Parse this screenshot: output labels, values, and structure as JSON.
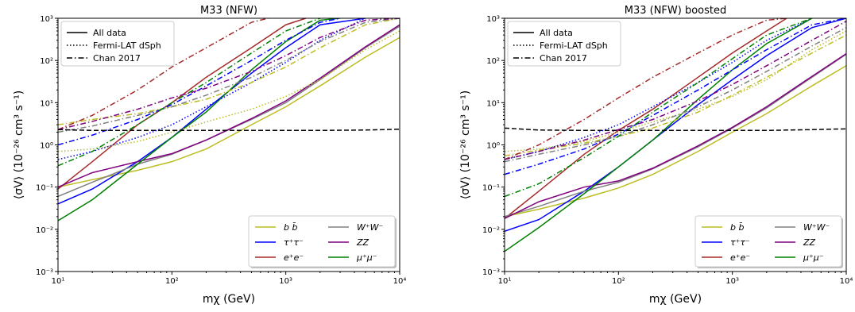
{
  "chart_data": [
    {
      "type": "line",
      "title": "M33 (NFW)",
      "xlabel": "mχ (GeV)",
      "ylabel": "⟨σV⟩ (10⁻²⁶ cm³ s⁻¹)",
      "xscale": "log",
      "yscale": "log",
      "xlim": [
        10,
        10000
      ],
      "ylim": [
        0.001,
        1000
      ],
      "xticks": [
        "10¹",
        "10²",
        "10³",
        "10⁴"
      ],
      "yticks": [
        "10⁻³",
        "10⁻²",
        "10⁻¹",
        "10⁰",
        "10¹",
        "10²",
        "10³"
      ],
      "style_legend": {
        "placement": "upper-left",
        "entries": [
          {
            "name": "All data",
            "dash": "solid"
          },
          {
            "name": "Fermi-LAT dSph",
            "dash": "dotted"
          },
          {
            "name": "Chan 2017",
            "dash": "dashdot"
          }
        ]
      },
      "channel_legend": {
        "placement": "lower-right",
        "entries": [
          {
            "name": "b b̄",
            "color": "#bcbd22"
          },
          {
            "name": "τ⁺τ⁻",
            "color": "#0000ff"
          },
          {
            "name": "e⁺e⁻",
            "color": "#a52a2a"
          },
          {
            "name": "W⁺W⁻",
            "color": "#808080"
          },
          {
            "name": "ZZ",
            "color": "#800080"
          },
          {
            "name": "μ⁺μ⁻",
            "color": "#008000"
          }
        ]
      },
      "series": [
        {
          "channel": "b b̄",
          "dash": "solid",
          "color": "#bcbd22",
          "x": [
            10,
            20,
            50,
            100,
            200,
            500,
            1000,
            2000,
            5000,
            10000
          ],
          "y": [
            0.1,
            0.15,
            0.25,
            0.4,
            0.8,
            3,
            8,
            25,
            120,
            350
          ]
        },
        {
          "channel": "τ⁺τ⁻",
          "dash": "solid",
          "color": "#0000ff",
          "x": [
            10,
            20,
            50,
            100,
            200,
            500,
            1000,
            2000,
            5000
          ],
          "y": [
            0.04,
            0.09,
            0.4,
            1.5,
            7,
            50,
            200,
            700,
            1000
          ]
        },
        {
          "channel": "e⁺e⁻",
          "dash": "solid",
          "color": "#a52a2a",
          "x": [
            10,
            20,
            50,
            100,
            200,
            500,
            1000,
            1500
          ],
          "y": [
            0.09,
            0.4,
            3,
            10,
            40,
            200,
            700,
            1000
          ]
        },
        {
          "channel": "W⁺W⁻",
          "dash": "solid",
          "color": "#808080",
          "x": [
            10,
            20,
            50,
            100,
            200,
            500,
            1000,
            2000,
            5000,
            10000
          ],
          "y": [
            0.06,
            0.13,
            0.35,
            0.6,
            1.3,
            4,
            10,
            35,
            200,
            650
          ]
        },
        {
          "channel": "ZZ",
          "dash": "solid",
          "color": "#800080",
          "x": [
            10,
            20,
            50,
            100,
            200,
            500,
            1000,
            2000,
            5000,
            10000
          ],
          "y": [
            0.1,
            0.22,
            0.4,
            0.62,
            1.3,
            4.2,
            11,
            38,
            210,
            700
          ]
        },
        {
          "channel": "μ⁺μ⁻",
          "dash": "solid",
          "color": "#008000",
          "x": [
            10,
            20,
            50,
            100,
            200,
            500,
            1000,
            2000,
            3000
          ],
          "y": [
            0.016,
            0.05,
            0.35,
            1.5,
            6,
            60,
            280,
            900,
            1000
          ]
        },
        {
          "channel": "b b̄",
          "dash": "dotted",
          "color": "#bcbd22",
          "x": [
            10,
            20,
            50,
            100,
            200,
            500,
            1000,
            2000,
            5000,
            10000
          ],
          "y": [
            0.7,
            0.8,
            1.2,
            2,
            3.5,
            7,
            14,
            35,
            180,
            500
          ]
        },
        {
          "channel": "τ⁺τ⁻",
          "dash": "dotted",
          "color": "#0000ff",
          "x": [
            10,
            20,
            50,
            100,
            200,
            500,
            1000,
            2000,
            5000
          ],
          "y": [
            0.45,
            0.7,
            1.5,
            3,
            8,
            30,
            90,
            300,
            1000
          ]
        },
        {
          "channel": "b b̄",
          "dash": "dashdot",
          "color": "#bcbd22",
          "x": [
            10,
            20,
            50,
            100,
            200,
            500,
            1000,
            2000,
            5000,
            10000
          ],
          "y": [
            3,
            4,
            5.5,
            8,
            12,
            30,
            70,
            200,
            700,
            1000
          ]
        },
        {
          "channel": "τ⁺τ⁻",
          "dash": "dashdot",
          "color": "#0000ff",
          "x": [
            10,
            20,
            50,
            100,
            200,
            500,
            1000,
            2000,
            3000
          ],
          "y": [
            1,
            1.7,
            4,
            9,
            25,
            100,
            300,
            800,
            1000
          ]
        },
        {
          "channel": "e⁺e⁻",
          "dash": "dashdot",
          "color": "#a52a2a",
          "x": [
            10,
            20,
            50,
            100,
            200,
            500,
            700
          ],
          "y": [
            2.3,
            5,
            20,
            70,
            200,
            800,
            1000
          ]
        },
        {
          "channel": "W⁺W⁻",
          "dash": "dashdot",
          "color": "#808080",
          "x": [
            10,
            20,
            50,
            100,
            200,
            500,
            1000,
            2000,
            5000,
            10000
          ],
          "y": [
            2,
            2.8,
            5,
            8,
            15,
            40,
            100,
            280,
            800,
            1000
          ]
        },
        {
          "channel": "ZZ",
          "dash": "dashdot",
          "color": "#800080",
          "x": [
            10,
            20,
            50,
            100,
            200,
            500,
            1000,
            2000,
            5000,
            10000
          ],
          "y": [
            2.3,
            3.6,
            7,
            13,
            22,
            55,
            130,
            350,
            900,
            1000
          ]
        },
        {
          "channel": "μ⁺μ⁻",
          "dash": "dashdot",
          "color": "#008000",
          "x": [
            10,
            20,
            50,
            100,
            200,
            500,
            1000,
            2000
          ],
          "y": [
            0.32,
            0.7,
            3,
            10,
            30,
            150,
            500,
            1000
          ]
        },
        {
          "channel": "reference",
          "dash": "dashed",
          "color": "#000000",
          "x": [
            10,
            20,
            50,
            100,
            200,
            500,
            1000,
            2000,
            5000,
            10000
          ],
          "y": [
            2.3,
            2.2,
            2.2,
            2.2,
            2.2,
            2.2,
            2.2,
            2.2,
            2.25,
            2.35
          ]
        }
      ]
    },
    {
      "type": "line",
      "title": "M33 (NFW) boosted",
      "xlabel": "mχ (GeV)",
      "ylabel": "⟨σV⟩ (10⁻²⁶ cm³ s⁻¹)",
      "xscale": "log",
      "yscale": "log",
      "xlim": [
        10,
        10000
      ],
      "ylim": [
        0.001,
        1000
      ],
      "xticks": [
        "10¹",
        "10²",
        "10³",
        "10⁴"
      ],
      "yticks": [
        "10⁻³",
        "10⁻²",
        "10⁻¹",
        "10⁰",
        "10¹",
        "10²",
        "10³"
      ],
      "style_legend": {
        "placement": "upper-left",
        "entries": [
          {
            "name": "All data",
            "dash": "solid"
          },
          {
            "name": "Fermi-LAT dSph",
            "dash": "dotted"
          },
          {
            "name": "Chan 2017",
            "dash": "dashdot"
          }
        ]
      },
      "channel_legend": {
        "placement": "lower-right",
        "entries": [
          {
            "name": "b b̄",
            "color": "#bcbd22"
          },
          {
            "name": "τ⁺τ⁻",
            "color": "#0000ff"
          },
          {
            "name": "e⁺e⁻",
            "color": "#a52a2a"
          },
          {
            "name": "W⁺W⁻",
            "color": "#808080"
          },
          {
            "name": "ZZ",
            "color": "#800080"
          },
          {
            "name": "μ⁺μ⁻",
            "color": "#008000"
          }
        ]
      },
      "series": [
        {
          "channel": "b b̄",
          "dash": "solid",
          "color": "#bcbd22",
          "x": [
            10,
            20,
            50,
            100,
            200,
            500,
            1000,
            2000,
            5000,
            10000
          ],
          "y": [
            0.02,
            0.03,
            0.055,
            0.095,
            0.2,
            0.7,
            2,
            5.5,
            25,
            75
          ]
        },
        {
          "channel": "τ⁺τ⁻",
          "dash": "solid",
          "color": "#0000ff",
          "x": [
            10,
            20,
            50,
            100,
            200,
            500,
            1000,
            2000,
            5000,
            10000
          ],
          "y": [
            0.009,
            0.017,
            0.08,
            0.3,
            1.3,
            9,
            35,
            130,
            600,
            1000
          ]
        },
        {
          "channel": "e⁺e⁻",
          "dash": "solid",
          "color": "#a52a2a",
          "x": [
            10,
            20,
            50,
            100,
            200,
            500,
            1000,
            2000,
            3000
          ],
          "y": [
            0.018,
            0.08,
            0.6,
            2.2,
            7,
            40,
            150,
            500,
            1000
          ]
        },
        {
          "channel": "W⁺W⁻",
          "dash": "solid",
          "color": "#808080",
          "x": [
            10,
            20,
            50,
            100,
            200,
            500,
            1000,
            2000,
            5000,
            10000
          ],
          "y": [
            0.02,
            0.035,
            0.08,
            0.13,
            0.27,
            0.9,
            2.5,
            7.5,
            40,
            140
          ]
        },
        {
          "channel": "ZZ",
          "dash": "solid",
          "color": "#800080",
          "x": [
            10,
            20,
            50,
            100,
            200,
            500,
            1000,
            2000,
            5000,
            10000
          ],
          "y": [
            0.018,
            0.045,
            0.1,
            0.14,
            0.28,
            0.95,
            2.6,
            8,
            42,
            145
          ]
        },
        {
          "channel": "μ⁺μ⁻",
          "dash": "solid",
          "color": "#008000",
          "x": [
            10,
            20,
            50,
            100,
            200,
            500,
            1000,
            2000,
            5000
          ],
          "y": [
            0.003,
            0.011,
            0.07,
            0.3,
            1.3,
            12,
            60,
            250,
            1000
          ]
        },
        {
          "channel": "b b̄",
          "dash": "dotted",
          "color": "#bcbd22",
          "x": [
            10,
            20,
            50,
            100,
            200,
            500,
            1000,
            2000,
            5000,
            10000
          ],
          "y": [
            0.7,
            0.8,
            1.2,
            2,
            3.5,
            7,
            14,
            35,
            180,
            500
          ]
        },
        {
          "channel": "τ⁺τ⁻",
          "dash": "dotted",
          "color": "#0000ff",
          "x": [
            10,
            20,
            50,
            100,
            200,
            500,
            1000,
            2000,
            5000
          ],
          "y": [
            0.45,
            0.7,
            1.5,
            3,
            8,
            30,
            90,
            300,
            1000
          ]
        },
        {
          "channel": "b b̄",
          "dash": "dashdot",
          "color": "#bcbd22",
          "x": [
            10,
            20,
            50,
            100,
            200,
            500,
            1000,
            2000,
            5000,
            10000
          ],
          "y": [
            0.55,
            0.75,
            1.1,
            1.6,
            2.5,
            6,
            15,
            40,
            150,
            400
          ]
        },
        {
          "channel": "τ⁺τ⁻",
          "dash": "dashdot",
          "color": "#0000ff",
          "x": [
            10,
            20,
            50,
            100,
            200,
            500,
            1000,
            2000,
            5000,
            10000
          ],
          "y": [
            0.2,
            0.35,
            0.8,
            1.8,
            5,
            20,
            60,
            180,
            700,
            1000
          ]
        },
        {
          "channel": "e⁺e⁻",
          "dash": "dashdot",
          "color": "#a52a2a",
          "x": [
            10,
            20,
            50,
            100,
            200,
            500,
            1000,
            2000,
            3000
          ],
          "y": [
            0.45,
            1,
            4,
            13,
            40,
            150,
            400,
            900,
            1000
          ]
        },
        {
          "channel": "W⁺W⁻",
          "dash": "dashdot",
          "color": "#808080",
          "x": [
            10,
            20,
            50,
            100,
            200,
            500,
            1000,
            2000,
            5000,
            10000
          ],
          "y": [
            0.4,
            0.6,
            1,
            1.6,
            3,
            8,
            20,
            55,
            220,
            600
          ]
        },
        {
          "channel": "ZZ",
          "dash": "dashdot",
          "color": "#800080",
          "x": [
            10,
            20,
            50,
            100,
            200,
            500,
            1000,
            2000,
            5000,
            10000
          ],
          "y": [
            0.45,
            0.7,
            1.3,
            2.3,
            4,
            11,
            27,
            75,
            300,
            850
          ]
        },
        {
          "channel": "μ⁺μ⁻",
          "dash": "dashdot",
          "color": "#008000",
          "x": [
            10,
            20,
            50,
            100,
            200,
            500,
            1000,
            2000,
            5000
          ],
          "y": [
            0.06,
            0.12,
            0.5,
            1.6,
            6,
            30,
            110,
            400,
            1000
          ]
        },
        {
          "channel": "reference",
          "dash": "dashed",
          "color": "#000000",
          "x": [
            10,
            20,
            50,
            100,
            200,
            500,
            1000,
            2000,
            5000,
            10000
          ],
          "y": [
            2.5,
            2.25,
            2.2,
            2.2,
            2.2,
            2.2,
            2.2,
            2.2,
            2.3,
            2.4
          ]
        }
      ]
    }
  ]
}
